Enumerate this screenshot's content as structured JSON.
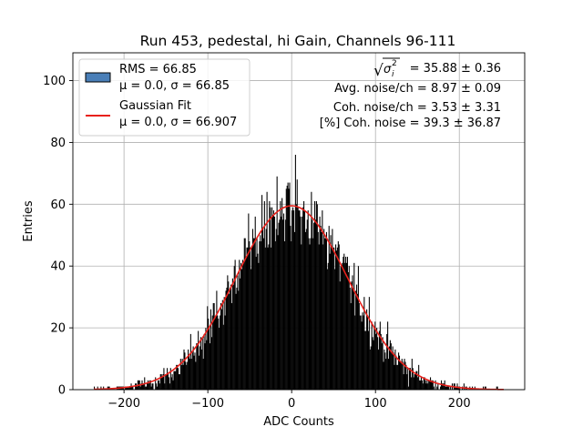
{
  "chart_data": {
    "type": "bar",
    "title": "Run 453, pedestal, hi Gain, Channels 96-111",
    "xlabel": "ADC Counts",
    "ylabel": "Entries",
    "xlim": [
      -261,
      278
    ],
    "ylim": [
      0,
      109
    ],
    "x_ticks": [
      -200,
      -100,
      0,
      100,
      200
    ],
    "x_tick_labels": [
      "−200",
      "−100",
      "0",
      "100",
      "200"
    ],
    "y_ticks": [
      0,
      20,
      40,
      60,
      80,
      100
    ],
    "y_tick_labels": [
      "0",
      "20",
      "40",
      "60",
      "80",
      "100"
    ],
    "grid": true,
    "legend_placement": "top-left",
    "histogram": {
      "name_lines": [
        "RMS = 66.85",
        "μ = 0.0, σ = 66.85"
      ],
      "bin_range": [
        -236,
        253
      ],
      "bin_width": 1,
      "gaussian_reference": {
        "mu": 0.0,
        "sigma": 66.85,
        "peak": 59.5
      },
      "color": "#000000",
      "legend_color": "#4a7fb8"
    },
    "fit": {
      "name_lines": [
        "Gaussian Fit",
        "μ = 0.0, σ = 66.907"
      ],
      "mu": 0.0,
      "sigma": 66.907,
      "amplitude": 59.5,
      "x_range": [
        -236,
        253
      ],
      "color": "#e8201a"
    },
    "annotations": {
      "sqrt_symbol": "√",
      "sigma_symbol": "σ",
      "sigma_subscript": "i",
      "sigma_superscript": "2",
      "sqrt_value": "= 35.88 ± 0.36",
      "lines": [
        "Avg. noise/ch = 8.97 ± 0.09",
        "Coh. noise/ch = 3.53 ± 3.31",
        "[%] Coh. noise = 39.3 ± 36.87"
      ]
    }
  }
}
